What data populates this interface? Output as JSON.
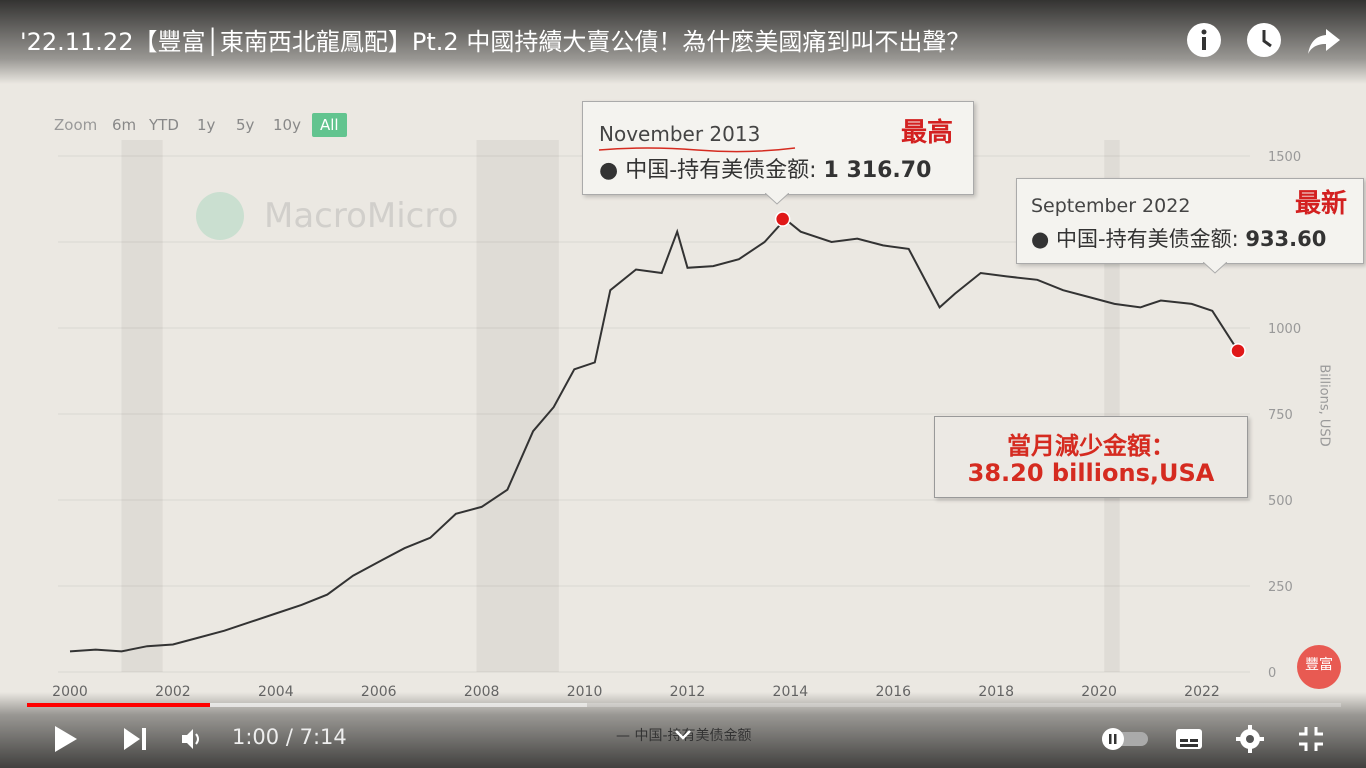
{
  "video": {
    "title": "'22.11.22【豐富│東南西北龍鳳配】Pt.2 中國持續大賣公債！為什麼美國痛到叫不出聲？",
    "current_time": "1:00",
    "duration": "7:14",
    "time_display": "1:00 / 7:14",
    "progress_fraction": 0.139,
    "buffered_fraction": 0.426
  },
  "top_icons": [
    "info-icon",
    "clock-icon",
    "share-icon"
  ],
  "chart_toolbar": {
    "zoom_label": "Zoom",
    "ranges": [
      "6m",
      "YTD",
      "1y",
      "5y",
      "10y",
      "All"
    ],
    "active_range": "All"
  },
  "watermark": "MacroMicro",
  "tooltip_high": {
    "date": "November 2013",
    "label": "● 中国-持有美债金额: ",
    "value": "1 316.70",
    "tag": "最高"
  },
  "tooltip_latest": {
    "date": "September 2022",
    "label": "● 中国-持有美债金额: ",
    "value": "933.60",
    "tag": "最新"
  },
  "callout": {
    "line1": "當月減少金額：",
    "line2": "38.20 billions,USA"
  },
  "channel_badge": "豐富",
  "colors": {
    "accent_red": "#d52b20",
    "progress_red": "#ff0000",
    "range_active": "#62c48f",
    "line": "#333333"
  },
  "chart_data": {
    "type": "line",
    "series": [
      {
        "name": "中国-持有美债金额",
        "x": [
          2000.0,
          2000.5,
          2001.0,
          2001.5,
          2002.0,
          2002.5,
          2003.0,
          2003.5,
          2004.0,
          2004.5,
          2005.0,
          2005.5,
          2006.0,
          2006.5,
          2007.0,
          2007.5,
          2008.0,
          2008.5,
          2009.0,
          2009.4,
          2009.8,
          2010.2,
          2010.5,
          2011.0,
          2011.5,
          2011.8,
          2012.0,
          2012.5,
          2013.0,
          2013.5,
          2013.9,
          2014.2,
          2014.8,
          2015.3,
          2015.8,
          2016.3,
          2016.9,
          2017.2,
          2017.7,
          2018.2,
          2018.8,
          2019.3,
          2019.8,
          2020.3,
          2020.8,
          2021.2,
          2021.8,
          2022.2,
          2022.7
        ],
        "y": [
          60,
          65,
          60,
          75,
          80,
          100,
          120,
          145,
          170,
          195,
          225,
          280,
          320,
          360,
          390,
          460,
          480,
          530,
          700,
          770,
          880,
          900,
          1110,
          1170,
          1160,
          1280,
          1175,
          1180,
          1200,
          1250,
          1316.7,
          1280,
          1250,
          1260,
          1240,
          1230,
          1060,
          1100,
          1160,
          1150,
          1140,
          1110,
          1090,
          1070,
          1060,
          1080,
          1070,
          1050,
          933.6
        ]
      }
    ],
    "xlim": [
      2000,
      2022.8
    ],
    "ylim": [
      0,
      1500
    ],
    "x_ticks": [
      2000,
      2002,
      2004,
      2006,
      2008,
      2010,
      2012,
      2014,
      2016,
      2018,
      2020,
      2022
    ],
    "y_ticks": [
      0,
      250,
      500,
      750,
      1000,
      1500
    ],
    "ylabel": "Billions, USD",
    "legend_position": "bottom",
    "highlight_points": [
      {
        "x": 2013.85,
        "y": 1316.7
      },
      {
        "x": 2022.7,
        "y": 933.6
      }
    ]
  }
}
